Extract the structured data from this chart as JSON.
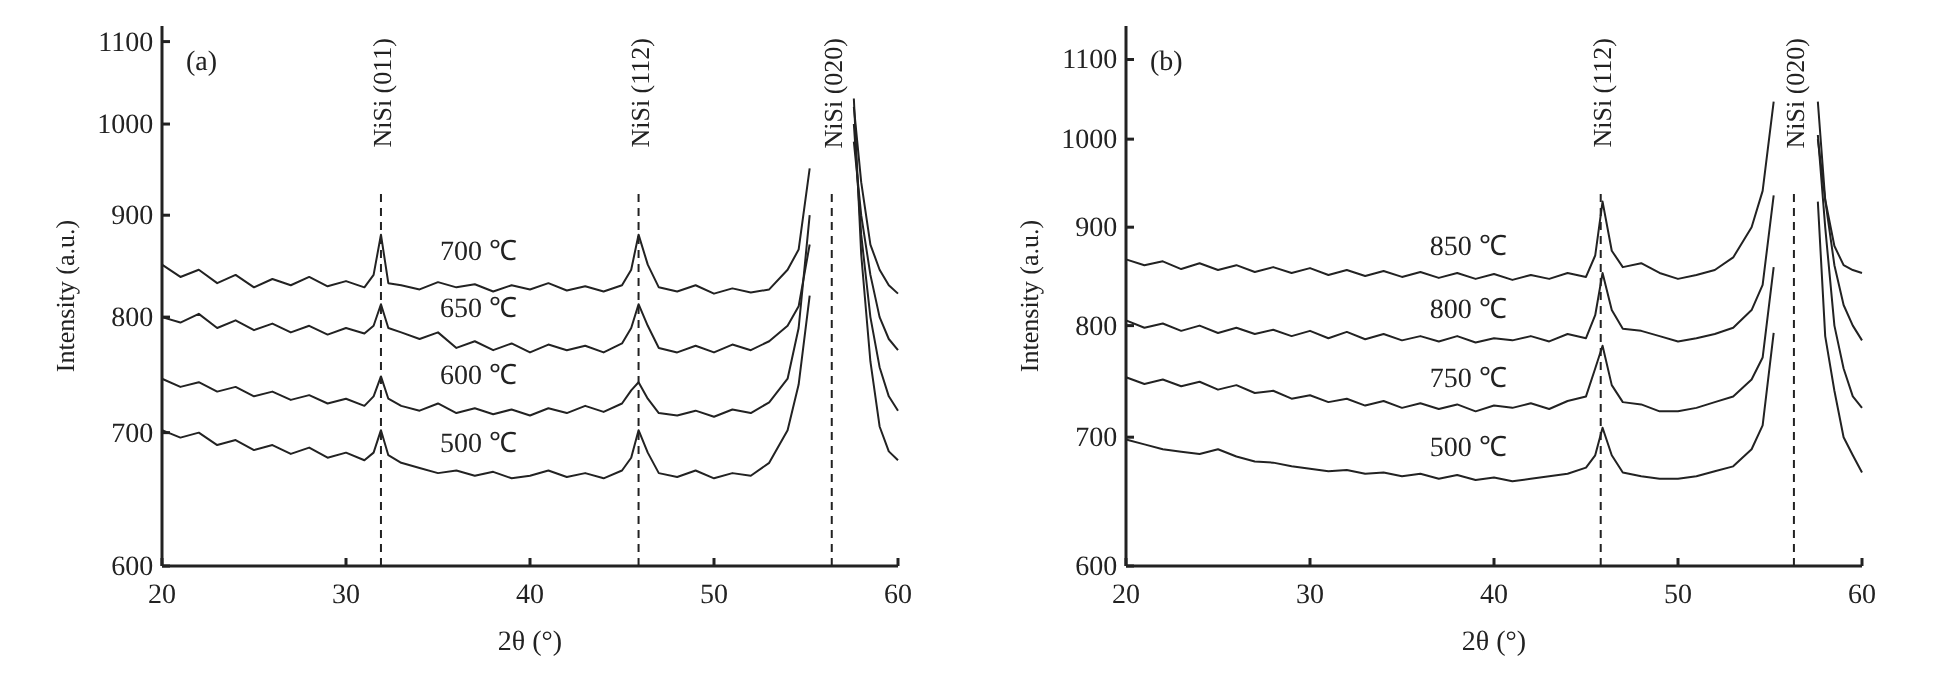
{
  "chart_data": [
    {
      "type": "line",
      "xlabel": "2θ (°)",
      "ylabel": "Intensity (a.u.)",
      "log": "y",
      "xlim": [
        20,
        60
      ],
      "xticks": [
        20,
        30,
        40,
        50,
        60
      ],
      "ylim": [
        600,
        1120
      ],
      "yticks": [
        600,
        700,
        800,
        900,
        1000,
        1100
      ],
      "legend": false,
      "annotations": [
        "(a)"
      ],
      "ref_lines": [
        {
          "axis": "x",
          "value": 31.9,
          "label": "NiSi (011)",
          "line_style": "dashed"
        },
        {
          "axis": "x",
          "value": 45.9,
          "label": "NiSi (112)",
          "line_style": "dashed"
        },
        {
          "axis": "x",
          "value": 56.4,
          "label": "NiSi (020)",
          "line_style": "dashed"
        }
      ],
      "series": [
        {
          "name": "700 ℃",
          "color": "#222222",
          "x": [
            20,
            21,
            22,
            23,
            24,
            25,
            26,
            27,
            28,
            29,
            30,
            31,
            31.5,
            31.9,
            32.3,
            33,
            34,
            35,
            36,
            37,
            38,
            39,
            40,
            41,
            42,
            43,
            44,
            45,
            45.5,
            45.9,
            46.4,
            47,
            48,
            49,
            50,
            51,
            52,
            53,
            54,
            54.6,
            55.2,
            55.7,
            56.5,
            57.2,
            57.6,
            58,
            58.5,
            59,
            59.5,
            60
          ],
          "values": [
            850,
            838,
            845,
            832,
            840,
            828,
            836,
            830,
            838,
            829,
            834,
            828,
            840,
            880,
            832,
            830,
            826,
            833,
            828,
            831,
            824,
            830,
            826,
            832,
            825,
            829,
            824,
            830,
            845,
            880,
            850,
            828,
            824,
            830,
            822,
            827,
            823,
            826,
            845,
            865,
            950,
            null,
            null,
            null,
            1020,
            935,
            870,
            845,
            830,
            822
          ]
        },
        {
          "name": "650 ℃",
          "color": "#222222",
          "x": [
            20,
            21,
            22,
            23,
            24,
            25,
            26,
            27,
            28,
            29,
            30,
            31,
            31.5,
            31.9,
            32.3,
            33,
            34,
            35,
            36,
            37,
            38,
            39,
            40,
            41,
            42,
            43,
            44,
            45,
            45.5,
            45.9,
            46.4,
            47,
            48,
            49,
            50,
            51,
            52,
            53,
            54,
            54.6,
            55.2,
            55.7,
            56.5,
            57.2,
            57.6,
            58,
            58.5,
            59,
            59.5,
            60
          ],
          "values": [
            800,
            795,
            803,
            790,
            797,
            788,
            794,
            786,
            792,
            784,
            790,
            785,
            792,
            812,
            790,
            786,
            780,
            786,
            772,
            778,
            770,
            776,
            768,
            775,
            770,
            774,
            768,
            776,
            790,
            812,
            792,
            772,
            768,
            774,
            768,
            775,
            770,
            778,
            792,
            810,
            870,
            null,
            null,
            null,
            980,
            900,
            840,
            800,
            780,
            770
          ]
        },
        {
          "name": "600 ℃",
          "color": "#222222",
          "x": [
            20,
            21,
            22,
            23,
            24,
            25,
            26,
            27,
            28,
            29,
            30,
            31,
            31.5,
            31.9,
            32.3,
            33,
            34,
            35,
            36,
            37,
            38,
            39,
            40,
            41,
            42,
            43,
            44,
            45,
            45.5,
            45.9,
            46.4,
            47,
            48,
            49,
            50,
            51,
            52,
            53,
            54,
            54.6,
            55.2,
            55.7,
            56.5,
            57.2,
            57.6,
            58,
            58.5,
            59,
            59.5,
            60
          ],
          "values": [
            745,
            738,
            742,
            734,
            738,
            730,
            734,
            727,
            731,
            724,
            728,
            722,
            730,
            747,
            728,
            722,
            718,
            724,
            716,
            720,
            715,
            719,
            714,
            720,
            716,
            722,
            717,
            724,
            735,
            742,
            728,
            716,
            714,
            718,
            713,
            719,
            716,
            725,
            745,
            790,
            900,
            null,
            null,
            null,
            1000,
            880,
            800,
            755,
            730,
            718
          ]
        },
        {
          "name": "500 ℃",
          "color": "#222222",
          "x": [
            20,
            21,
            22,
            23,
            24,
            25,
            26,
            27,
            28,
            29,
            30,
            31,
            31.5,
            31.9,
            32.3,
            33,
            34,
            35,
            36,
            37,
            38,
            39,
            40,
            41,
            42,
            43,
            44,
            45,
            45.5,
            45.9,
            46.4,
            47,
            48,
            49,
            50,
            51,
            52,
            53,
            54,
            54.6,
            55.2,
            55.7,
            56.5,
            57.2,
            57.6,
            58,
            58.5,
            59,
            59.5,
            60
          ],
          "values": [
            702,
            696,
            700,
            690,
            694,
            686,
            690,
            683,
            688,
            680,
            684,
            678,
            684,
            702,
            682,
            676,
            672,
            668,
            670,
            666,
            669,
            664,
            666,
            670,
            665,
            668,
            664,
            670,
            680,
            702,
            684,
            668,
            665,
            670,
            664,
            668,
            666,
            676,
            702,
            740,
            820,
            null,
            null,
            null,
            1030,
            860,
            760,
            705,
            685,
            678
          ]
        }
      ]
    },
    {
      "type": "line",
      "xlabel": "2θ (°)",
      "ylabel": "Intensity (a.u.)",
      "log": "y",
      "xlim": [
        20,
        60
      ],
      "xticks": [
        20,
        30,
        40,
        50,
        60
      ],
      "ylim": [
        600,
        1145
      ],
      "yticks": [
        600,
        700,
        800,
        900,
        1000,
        1100
      ],
      "legend": false,
      "annotations": [
        "(b)"
      ],
      "ref_lines": [
        {
          "axis": "x",
          "value": 45.8,
          "label": "NiSi (112)",
          "line_style": "dashed"
        },
        {
          "axis": "x",
          "value": 56.3,
          "label": "NiSi (020)",
          "line_style": "dashed"
        }
      ],
      "series": [
        {
          "name": "850 ℃",
          "color": "#222222",
          "x": [
            20,
            21,
            22,
            23,
            24,
            25,
            26,
            27,
            28,
            29,
            30,
            31,
            32,
            33,
            34,
            35,
            36,
            37,
            38,
            39,
            40,
            41,
            42,
            43,
            44,
            45,
            45.5,
            45.9,
            46.4,
            47,
            48,
            49,
            50,
            51,
            52,
            53,
            54,
            54.6,
            55.2,
            55.7,
            56.5,
            57.2,
            57.6,
            58,
            58.5,
            59,
            59.5,
            60
          ],
          "values": [
            866,
            860,
            864,
            856,
            862,
            855,
            860,
            853,
            858,
            852,
            857,
            850,
            855,
            849,
            854,
            848,
            853,
            847,
            852,
            846,
            851,
            845,
            850,
            846,
            852,
            848,
            870,
            928,
            875,
            858,
            862,
            852,
            846,
            850,
            855,
            868,
            900,
            940,
            1046,
            null,
            null,
            null,
            1046,
            930,
            880,
            860,
            855,
            852
          ]
        },
        {
          "name": "800 ℃",
          "color": "#222222",
          "x": [
            20,
            21,
            22,
            23,
            24,
            25,
            26,
            27,
            28,
            29,
            30,
            31,
            32,
            33,
            34,
            35,
            36,
            37,
            38,
            39,
            40,
            41,
            42,
            43,
            44,
            45,
            45.5,
            45.9,
            46.4,
            47,
            48,
            49,
            50,
            51,
            52,
            53,
            54,
            54.6,
            55.2,
            55.7,
            56.5,
            57.2,
            57.6,
            58,
            58.5,
            59,
            59.5,
            60
          ],
          "values": [
            805,
            798,
            802,
            795,
            800,
            793,
            798,
            792,
            796,
            790,
            795,
            788,
            794,
            787,
            792,
            786,
            790,
            785,
            790,
            784,
            788,
            786,
            790,
            785,
            792,
            788,
            810,
            852,
            815,
            797,
            795,
            790,
            785,
            788,
            792,
            798,
            815,
            840,
            935,
            null,
            null,
            null,
            1000,
            930,
            860,
            820,
            800,
            786
          ]
        },
        {
          "name": "750 ℃",
          "color": "#222222",
          "x": [
            20,
            21,
            22,
            23,
            24,
            25,
            26,
            27,
            28,
            29,
            30,
            31,
            32,
            33,
            34,
            35,
            36,
            37,
            38,
            39,
            40,
            41,
            42,
            43,
            44,
            45,
            45.5,
            45.9,
            46.4,
            47,
            48,
            49,
            50,
            51,
            52,
            53,
            54,
            54.6,
            55.2,
            55.7,
            56.5,
            57.2,
            57.6,
            58,
            58.5,
            59,
            59.5,
            60
          ],
          "values": [
            752,
            746,
            750,
            744,
            748,
            741,
            745,
            738,
            740,
            733,
            736,
            730,
            733,
            727,
            731,
            725,
            729,
            724,
            728,
            722,
            727,
            725,
            729,
            724,
            731,
            735,
            760,
            781,
            745,
            730,
            728,
            722,
            722,
            725,
            730,
            735,
            750,
            770,
            858,
            null,
            null,
            null,
            1005,
            900,
            800,
            760,
            735,
            725
          ]
        },
        {
          "name": "500 ℃",
          "color": "#222222",
          "x": [
            20,
            21,
            22,
            23,
            24,
            25,
            26,
            27,
            28,
            29,
            30,
            31,
            32,
            33,
            34,
            35,
            36,
            37,
            38,
            39,
            40,
            41,
            42,
            43,
            44,
            45,
            45.5,
            45.9,
            46.4,
            47,
            48,
            49,
            50,
            51,
            52,
            53,
            54,
            54.6,
            55.2,
            55.7,
            56.5,
            57.2,
            57.6,
            58,
            58.5,
            59,
            59.5,
            60
          ],
          "values": [
            698,
            694,
            690,
            688,
            686,
            690,
            684,
            680,
            679,
            676,
            674,
            672,
            673,
            670,
            671,
            668,
            670,
            666,
            669,
            665,
            667,
            664,
            666,
            668,
            670,
            675,
            685,
            708,
            685,
            671,
            668,
            666,
            666,
            668,
            672,
            676,
            690,
            710,
            793,
            null,
            null,
            null,
            928,
            790,
            740,
            700,
            685,
            671
          ]
        }
      ]
    }
  ]
}
